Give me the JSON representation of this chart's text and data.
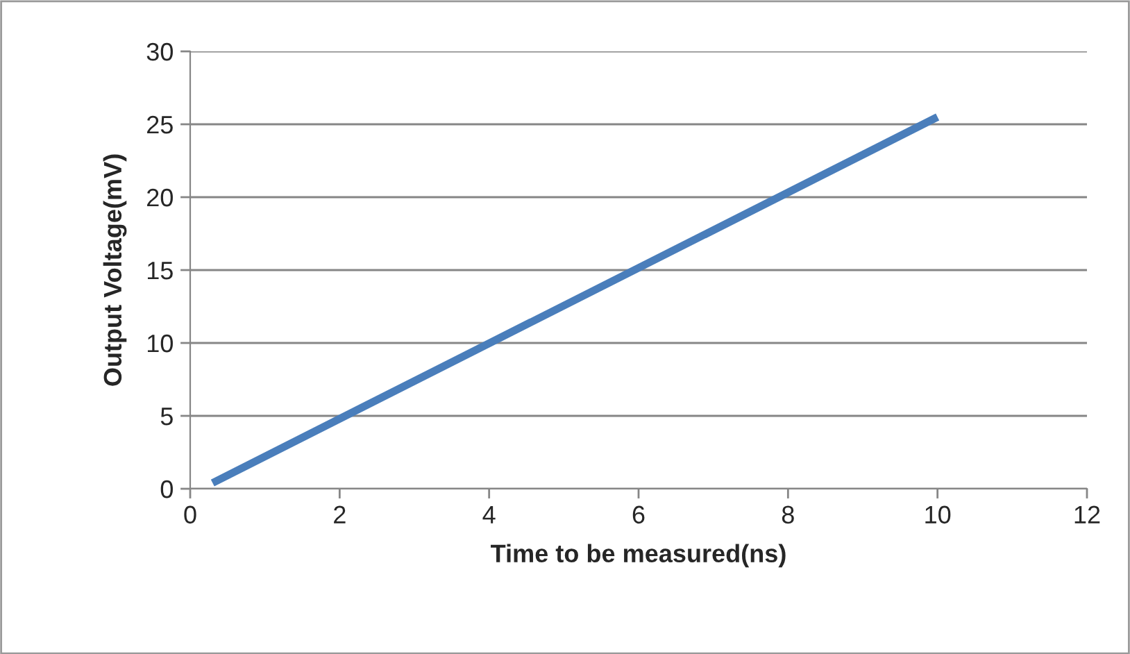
{
  "chart_data": {
    "type": "line",
    "xlabel": "Time to be measured(ns)",
    "ylabel": "Output Voltage(mV)",
    "series": [
      {
        "color": "#4a7ebb",
        "x": [
          0.3,
          10
        ],
        "values": [
          0.4,
          25.5
        ]
      }
    ],
    "xlim": [
      0,
      12
    ],
    "xticks": [
      0,
      2,
      4,
      6,
      8,
      10,
      12
    ],
    "ylim": [
      0,
      30
    ],
    "yticks": [
      0,
      5,
      10,
      15,
      20,
      25,
      30
    ],
    "grid": "y",
    "legend": false,
    "marker": "none",
    "line_style": "solid"
  }
}
